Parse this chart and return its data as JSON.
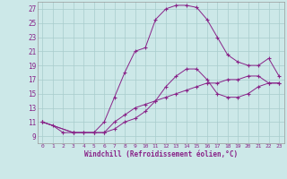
{
  "xlabel": "Windchill (Refroidissement éolien,°C)",
  "bg_color": "#cce8e8",
  "grid_color": "#a8cccc",
  "line_color": "#882288",
  "xlim": [
    -0.5,
    23.5
  ],
  "ylim": [
    8.0,
    28.0
  ],
  "xticks": [
    0,
    1,
    2,
    3,
    4,
    5,
    6,
    7,
    8,
    9,
    10,
    11,
    12,
    13,
    14,
    15,
    16,
    17,
    18,
    19,
    20,
    21,
    22,
    23
  ],
  "yticks": [
    9,
    11,
    13,
    15,
    17,
    19,
    21,
    23,
    25,
    27
  ],
  "line1_x": [
    0,
    1,
    2,
    3,
    4,
    5,
    6,
    7,
    8,
    9,
    10,
    11,
    12,
    13,
    14,
    15,
    16,
    17,
    18,
    19,
    20,
    21,
    22,
    23
  ],
  "line1_y": [
    11,
    10.5,
    9.5,
    9.5,
    9.5,
    9.5,
    9.5,
    10.0,
    11.0,
    11.5,
    12.5,
    14.0,
    16.0,
    17.5,
    18.5,
    18.5,
    17.0,
    15.0,
    14.5,
    14.5,
    15.0,
    16.0,
    16.5,
    16.5
  ],
  "line2_x": [
    0,
    3,
    4,
    5,
    6,
    7,
    8,
    9,
    10,
    11,
    12,
    13,
    14,
    15,
    16,
    17,
    18,
    19,
    20,
    21,
    22,
    23
  ],
  "line2_y": [
    11,
    9.5,
    9.5,
    9.5,
    11.0,
    14.5,
    18.0,
    21.0,
    21.5,
    25.5,
    27.0,
    27.5,
    27.5,
    27.2,
    25.5,
    23.0,
    20.5,
    19.5,
    19.0,
    19.0,
    20.0,
    17.5
  ],
  "line3_x": [
    0,
    3,
    5,
    6,
    7,
    8,
    9,
    10,
    11,
    12,
    13,
    14,
    15,
    16,
    17,
    18,
    19,
    20,
    21,
    22,
    23
  ],
  "line3_y": [
    11,
    9.5,
    9.5,
    9.5,
    11.0,
    12.0,
    13.0,
    13.5,
    14.0,
    14.5,
    15.0,
    15.5,
    16.0,
    16.5,
    16.5,
    17.0,
    17.0,
    17.5,
    17.5,
    16.5,
    16.5
  ]
}
